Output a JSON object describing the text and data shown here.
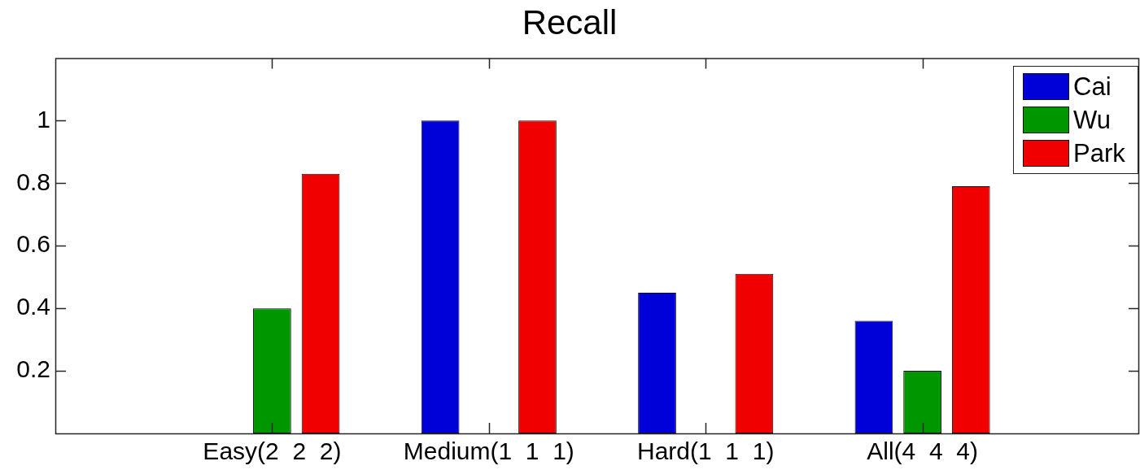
{
  "chart_data": {
    "type": "bar",
    "title": "Recall",
    "categories": [
      "Easy(2  2  2)",
      "Medium(1  1  1)",
      "Hard(1  1  1)",
      "All(4  4  4)"
    ],
    "series": [
      {
        "name": "Cai",
        "color": "#0000d8",
        "values": [
          0,
          1,
          0.45,
          0.36
        ]
      },
      {
        "name": "Wu",
        "color": "#009600",
        "values": [
          0.4,
          0,
          0,
          0.2
        ]
      },
      {
        "name": "Park",
        "color": "#f00000",
        "values": [
          0.83,
          1,
          0.51,
          0.79
        ]
      }
    ],
    "ylim": [
      0,
      1.2
    ],
    "yticks": [
      0.2,
      0.4,
      0.6,
      0.8,
      1
    ],
    "grid": false,
    "legend": "top right"
  }
}
